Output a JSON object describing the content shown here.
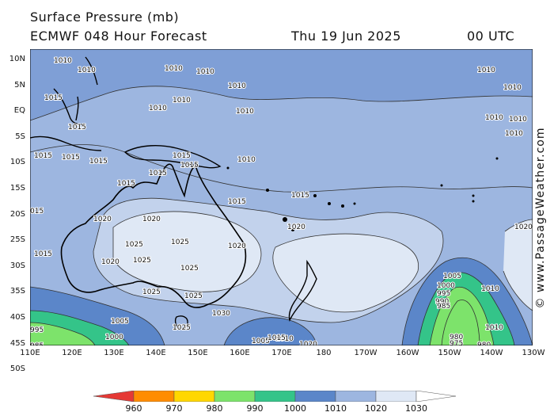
{
  "header": {
    "title": "Surface Pressure (mb)",
    "model": "ECMWF 048 Hour Forecast",
    "date": "Thu 19 Jun 2025",
    "time": "00 UTC"
  },
  "credit": "© www.PassageWeather.com",
  "axes": {
    "lat_labels": [
      "10N",
      "5N",
      "EQ",
      "5S",
      "10S",
      "15S",
      "20S",
      "25S",
      "30S",
      "35S",
      "40S",
      "45S",
      "50S"
    ],
    "lon_labels": [
      "110E",
      "120E",
      "130E",
      "140E",
      "150E",
      "160E",
      "170E",
      "180",
      "170W",
      "160W",
      "150W",
      "140W",
      "130W"
    ]
  },
  "legend": {
    "values": [
      "960",
      "970",
      "980",
      "990",
      "1000",
      "1010",
      "1020",
      "1030"
    ],
    "colors": [
      "#e53935",
      "#ff8c00",
      "#ffd700",
      "#7de36b",
      "#34c489",
      "#5b86c9",
      "#9db6e0",
      "#dfe8f5"
    ]
  },
  "isobar_labels": [
    {
      "text": "1010"
    },
    {
      "text": "1010"
    },
    {
      "text": "1010"
    },
    {
      "text": "1010"
    },
    {
      "text": "1010"
    },
    {
      "text": "1010"
    },
    {
      "text": "1010"
    },
    {
      "text": "1010"
    },
    {
      "text": "1010"
    },
    {
      "text": "1010"
    },
    {
      "text": "1010"
    },
    {
      "text": "1010"
    },
    {
      "text": "1015"
    },
    {
      "text": "1015"
    },
    {
      "text": "1015"
    },
    {
      "text": "1015"
    },
    {
      "text": "1015"
    },
    {
      "text": "1015"
    },
    {
      "text": "1015"
    },
    {
      "text": "1015"
    },
    {
      "text": "1015"
    },
    {
      "text": "1015"
    },
    {
      "text": "1015"
    },
    {
      "text": "1015"
    },
    {
      "text": "015"
    },
    {
      "text": "1020"
    },
    {
      "text": "1020"
    },
    {
      "text": "1020"
    },
    {
      "text": "1020"
    },
    {
      "text": "1020"
    },
    {
      "text": "1020"
    },
    {
      "text": "1025"
    },
    {
      "text": "1025"
    },
    {
      "text": "1025"
    },
    {
      "text": "1025"
    },
    {
      "text": "1025"
    },
    {
      "text": "1025"
    },
    {
      "text": "1025"
    },
    {
      "text": "1030"
    },
    {
      "text": "1020"
    },
    {
      "text": "1010"
    },
    {
      "text": "1005"
    },
    {
      "text": "1000"
    },
    {
      "text": "995"
    },
    {
      "text": "990"
    },
    {
      "text": "985"
    },
    {
      "text": "980"
    },
    {
      "text": "975"
    },
    {
      "text": "980"
    },
    {
      "text": "1010"
    },
    {
      "text": "1005"
    },
    {
      "text": "1000"
    },
    {
      "text": "995"
    },
    {
      "text": "985"
    },
    {
      "text": "1005"
    },
    {
      "text": "1010"
    },
    {
      "text": "1015"
    },
    {
      "text": "1010"
    },
    {
      "text": "1010"
    }
  ]
}
